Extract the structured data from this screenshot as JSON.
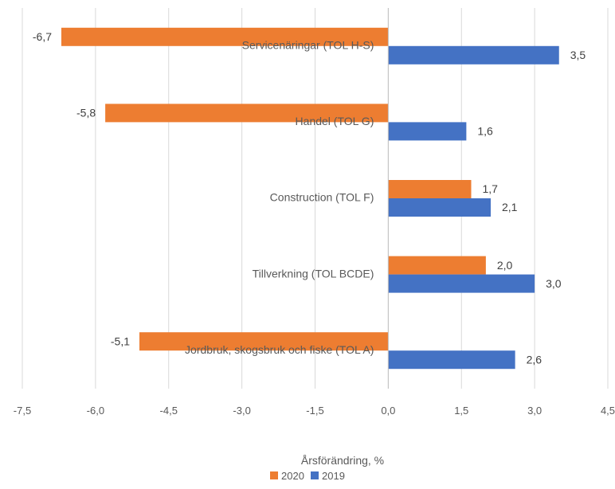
{
  "chart_data": {
    "type": "bar",
    "orientation": "horizontal",
    "categories": [
      "Servicenäringar (TOL H-S)",
      "Handel (TOL G)",
      "Construction (TOL F)",
      "Tillverkning (TOL BCDE)",
      "Jordbruk, skogsbruk och fiske  (TOL A)"
    ],
    "series": [
      {
        "name": "2020",
        "color": "#ED7D31",
        "values": [
          -6.7,
          -5.8,
          1.7,
          2.0,
          -5.1
        ],
        "labels": [
          "-6,7",
          "-5,8",
          "1,7",
          "2,0",
          "-5,1"
        ]
      },
      {
        "name": "2019",
        "color": "#4472C4",
        "values": [
          3.5,
          1.6,
          2.1,
          3.0,
          2.6
        ],
        "labels": [
          "3,5",
          "1,6",
          "2,1",
          "3,0",
          "2,6"
        ]
      }
    ],
    "xlabel": "Årsförändring, %",
    "xlim": [
      -7.5,
      4.5
    ],
    "xticks": [
      -7.5,
      -6.0,
      -4.5,
      -3.0,
      -1.5,
      0.0,
      1.5,
      3.0,
      4.5
    ],
    "xtick_labels": [
      "-7,5",
      "-6,0",
      "-4,5",
      "-3,0",
      "-1,5",
      "0,0",
      "1,5",
      "3,0",
      "4,5"
    ],
    "grid": "vertical",
    "legend": "bottom",
    "legend_entries": [
      "2020",
      "2019"
    ]
  }
}
